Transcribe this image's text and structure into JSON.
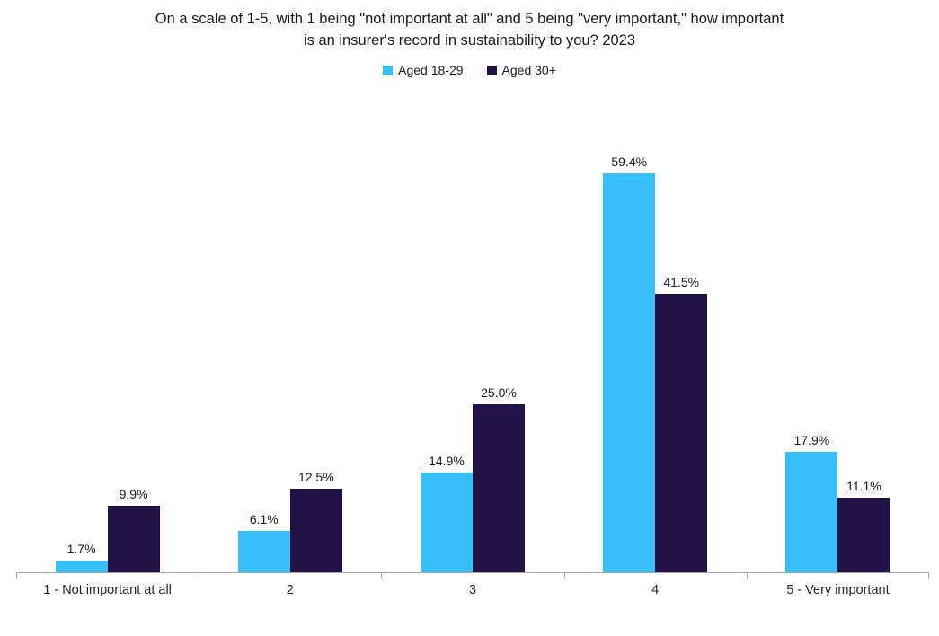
{
  "chart_data": {
    "type": "bar",
    "title": "On a scale of 1-5, with 1 being \"not important at all\" and 5 being \"very important,\" how important\nis an insurer's record in sustainability to you? 2023",
    "categories": [
      "1 - Not important at all",
      "2",
      "3",
      "4",
      "5 - Very important"
    ],
    "series": [
      {
        "name": "Aged 18-29",
        "color": "#39C0FB",
        "values": [
          1.7,
          6.1,
          14.9,
          59.4,
          17.9
        ]
      },
      {
        "name": "Aged 30+",
        "color": "#231245",
        "values": [
          9.9,
          12.5,
          25.0,
          41.5,
          11.1
        ]
      }
    ],
    "value_suffix": "%",
    "value_decimals": 1,
    "data_labels": true,
    "ylim": [
      0,
      60
    ],
    "grid": false,
    "legend_position": "top-center",
    "axis_color": "#A6A6A6",
    "text_color": "#1A1A1A"
  }
}
